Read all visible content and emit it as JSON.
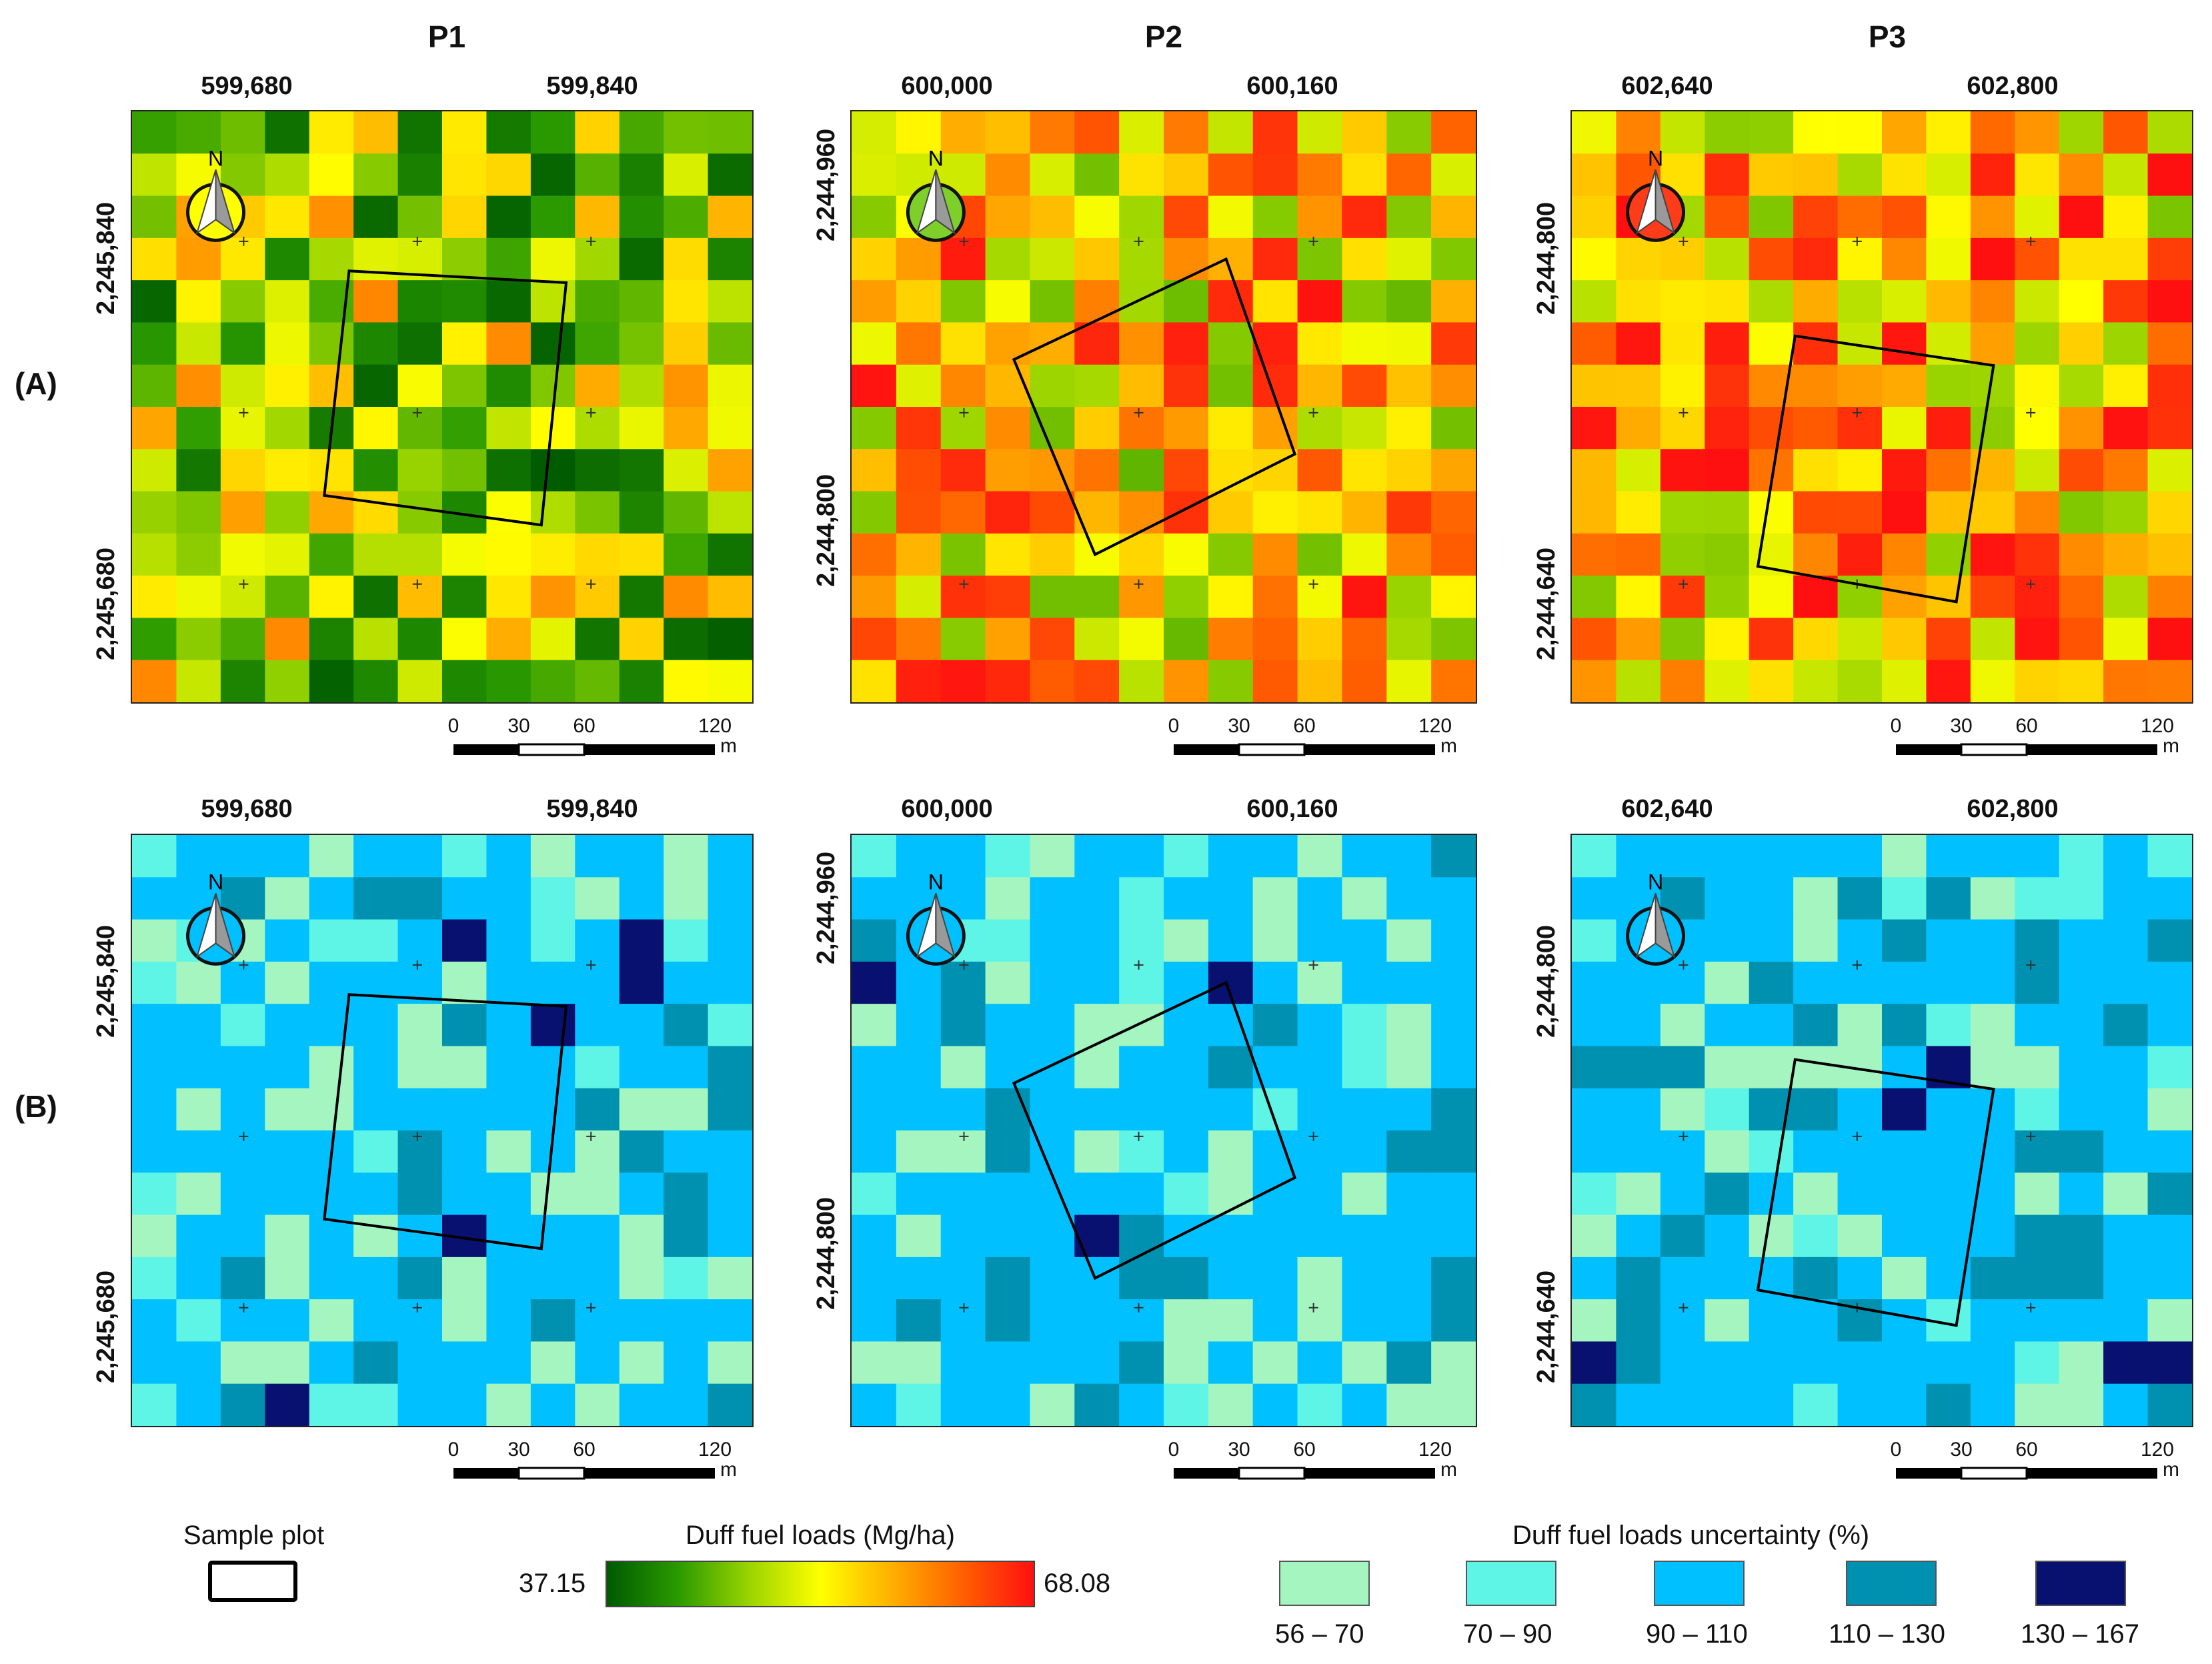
{
  "columns": [
    {
      "title": "P1",
      "xticks": [
        "599,680",
        "599,840"
      ],
      "yticks": [
        "2,245,840",
        "2,245,680"
      ],
      "seed": 11,
      "north_fill": "#ffff00"
    },
    {
      "title": "P2",
      "xticks": [
        "600,000",
        "600,160"
      ],
      "yticks": [
        "2,244,960",
        "2,244,800"
      ],
      "seed": 23,
      "north_fill": "#7fcf2a"
    },
    {
      "title": "P3",
      "xticks": [
        "602,640",
        "602,800"
      ],
      "yticks": [
        "2,244,800",
        "2,244,640"
      ],
      "seed": 37,
      "north_fill": "#ff3c1a"
    }
  ],
  "rows": [
    {
      "label": "(A)",
      "kind": "loads"
    },
    {
      "label": "(B)",
      "kind": "uncertainty"
    }
  ],
  "north_label": "N",
  "scalebar": {
    "ticks": [
      "0",
      "30",
      "60",
      "120"
    ],
    "unit": "m"
  },
  "legend": {
    "sample_plot_label": "Sample plot",
    "loads_title": "Duff fuel loads (Mg/ha)",
    "loads_min": "37.15",
    "loads_max": "68.08",
    "gradient_colors": [
      "#005a00",
      "#2a9a00",
      "#9ad400",
      "#ffff00",
      "#ffb000",
      "#ff6000",
      "#ff1010"
    ],
    "uncertainty_title": "Duff fuel loads uncertainty (%)",
    "classes": [
      {
        "label": "56 – 70",
        "color": "#a4f5c0"
      },
      {
        "label": "70 – 90",
        "color": "#5ef5e6"
      },
      {
        "label": "90 – 110",
        "color": "#00c0ff"
      },
      {
        "label": "110 – 130",
        "color": "#0090b0"
      },
      {
        "label": "130 – 167",
        "color": "#081070"
      }
    ]
  }
}
